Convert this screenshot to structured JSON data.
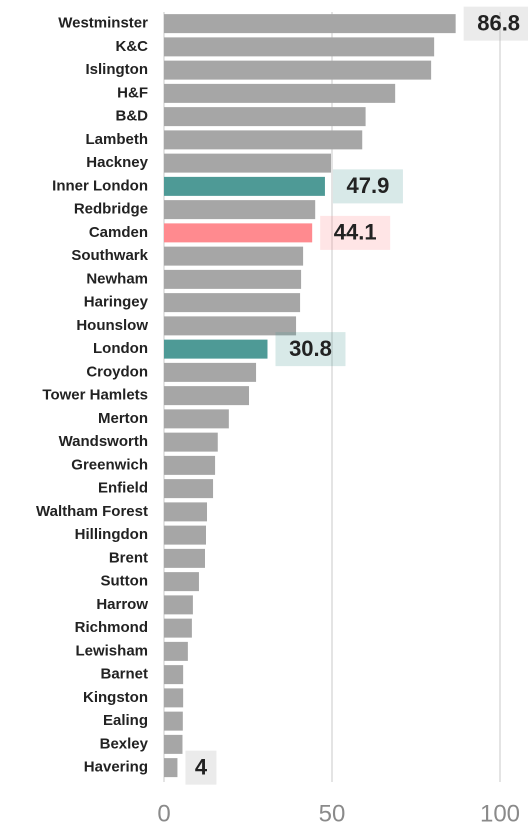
{
  "chart_data": {
    "type": "barh",
    "categories": [
      "Westminster",
      "K&C",
      "Islington",
      "H&F",
      "B&D",
      "Lambeth",
      "Hackney",
      "Inner London",
      "Redbridge",
      "Camden",
      "Southwark",
      "Newham",
      "Haringey",
      "Hounslow",
      "London",
      "Croydon",
      "Tower Hamlets",
      "Merton",
      "Wandsworth",
      "Greenwich",
      "Enfield",
      "Waltham Forest",
      "Hillingdon",
      "Brent",
      "Sutton",
      "Harrow",
      "Richmond",
      "Lewisham",
      "Barnet",
      "Kingston",
      "Ealing",
      "Bexley",
      "Havering"
    ],
    "values": [
      86.8,
      80.4,
      79.5,
      68.8,
      60,
      59,
      49.7,
      47.9,
      45,
      44.1,
      41.4,
      40.8,
      40.5,
      39.3,
      30.8,
      27.4,
      25.3,
      19.3,
      16,
      15.2,
      14.6,
      12.8,
      12.5,
      12.2,
      10.4,
      8.6,
      8.3,
      7.1,
      5.7,
      5.7,
      5.6,
      5.5,
      4
    ],
    "value_labels": [
      "86.8",
      null,
      null,
      null,
      null,
      null,
      null,
      "47.9",
      null,
      "44.1",
      null,
      null,
      null,
      null,
      "30.8",
      null,
      null,
      null,
      null,
      null,
      null,
      null,
      null,
      null,
      null,
      null,
      null,
      null,
      null,
      null,
      null,
      null,
      "4"
    ],
    "colors": [
      "#a6a6a6",
      "#a6a6a6",
      "#a6a6a6",
      "#a6a6a6",
      "#a6a6a6",
      "#a6a6a6",
      "#a6a6a6",
      "#4e9a96",
      "#a6a6a6",
      "#ff8a8f",
      "#a6a6a6",
      "#a6a6a6",
      "#a6a6a6",
      "#a6a6a6",
      "#4e9a96",
      "#a6a6a6",
      "#a6a6a6",
      "#a6a6a6",
      "#a6a6a6",
      "#a6a6a6",
      "#a6a6a6",
      "#a6a6a6",
      "#a6a6a6",
      "#a6a6a6",
      "#a6a6a6",
      "#a6a6a6",
      "#a6a6a6",
      "#a6a6a6",
      "#a6a6a6",
      "#a6a6a6",
      "#a6a6a6",
      "#a6a6a6",
      "#a6a6a6"
    ],
    "xlim": [
      0,
      100
    ],
    "xticks": [
      0,
      50,
      100
    ],
    "grid": true
  }
}
